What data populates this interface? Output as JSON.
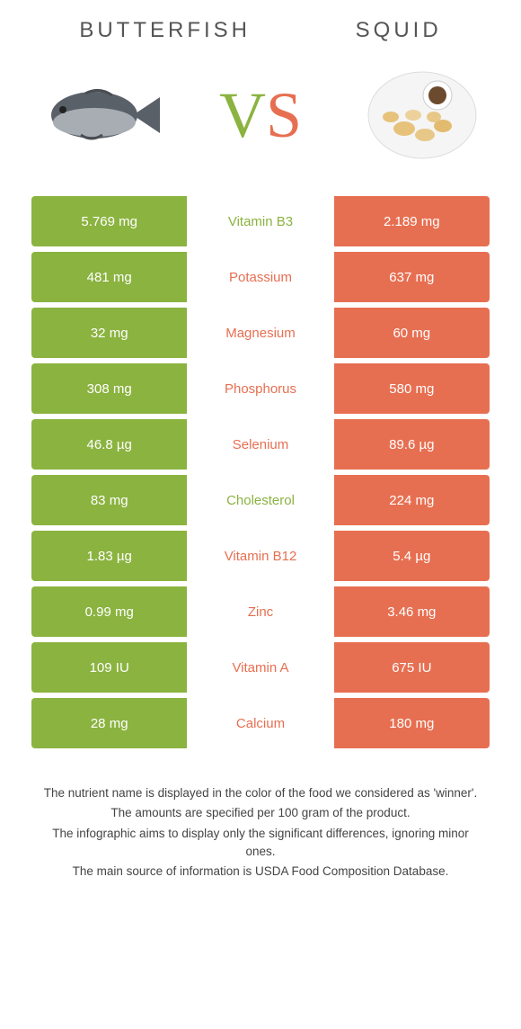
{
  "colors": {
    "left": "#8bb340",
    "right": "#e76f51",
    "bg": "#ffffff"
  },
  "header": {
    "left_label": "BUTTERFISH",
    "right_label": "SQUID"
  },
  "vs": {
    "v": "V",
    "s": "S"
  },
  "rows": [
    {
      "nutrient": "Vitamin B3",
      "left": "5.769 mg",
      "right": "2.189 mg",
      "winner": "left"
    },
    {
      "nutrient": "Potassium",
      "left": "481 mg",
      "right": "637 mg",
      "winner": "right"
    },
    {
      "nutrient": "Magnesium",
      "left": "32 mg",
      "right": "60 mg",
      "winner": "right"
    },
    {
      "nutrient": "Phosphorus",
      "left": "308 mg",
      "right": "580 mg",
      "winner": "right"
    },
    {
      "nutrient": "Selenium",
      "left": "46.8 µg",
      "right": "89.6 µg",
      "winner": "right"
    },
    {
      "nutrient": "Cholesterol",
      "left": "83 mg",
      "right": "224 mg",
      "winner": "left"
    },
    {
      "nutrient": "Vitamin B12",
      "left": "1.83 µg",
      "right": "5.4 µg",
      "winner": "right"
    },
    {
      "nutrient": "Zinc",
      "left": "0.99 mg",
      "right": "3.46 mg",
      "winner": "right"
    },
    {
      "nutrient": "Vitamin A",
      "left": "109 IU",
      "right": "675 IU",
      "winner": "right"
    },
    {
      "nutrient": "Calcium",
      "left": "28 mg",
      "right": "180 mg",
      "winner": "right"
    }
  ],
  "footer": {
    "line1": "The nutrient name is displayed in the color of the food we considered as 'winner'.",
    "line2": "The amounts are specified per 100 gram of the product.",
    "line3": "The infographic aims to display only the significant differences, ignoring minor ones.",
    "line4": "The main source of information is USDA Food Composition Database."
  }
}
